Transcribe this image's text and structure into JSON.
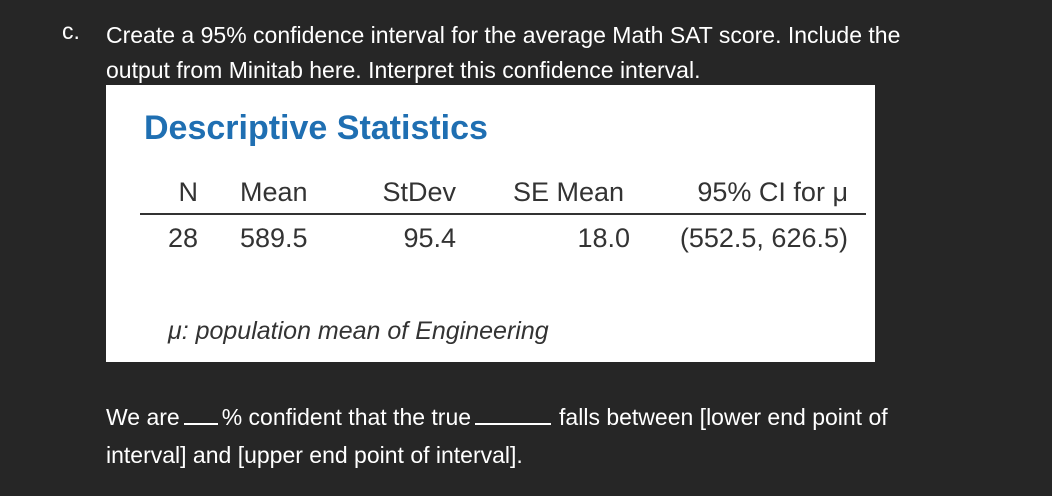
{
  "question": {
    "letter": "c.",
    "line1": "Create a 95% confidence interval for the average Math SAT score.  Include the",
    "line2": "output from Minitab here. Interpret this confidence interval."
  },
  "minitab": {
    "title": "Descriptive Statistics",
    "headers": [
      "N",
      "Mean",
      "StDev",
      "SE Mean",
      "95% CI for μ"
    ],
    "row": [
      "28",
      "589.5",
      "95.4",
      "18.0",
      "(552.5, 626.5)"
    ],
    "note": "μ: population mean of Engineering"
  },
  "answer": {
    "part1": "We are",
    "part2": "% confident that the true",
    "part3": "falls between [lower end point of",
    "line2": "interval] and [upper end point of interval]."
  }
}
